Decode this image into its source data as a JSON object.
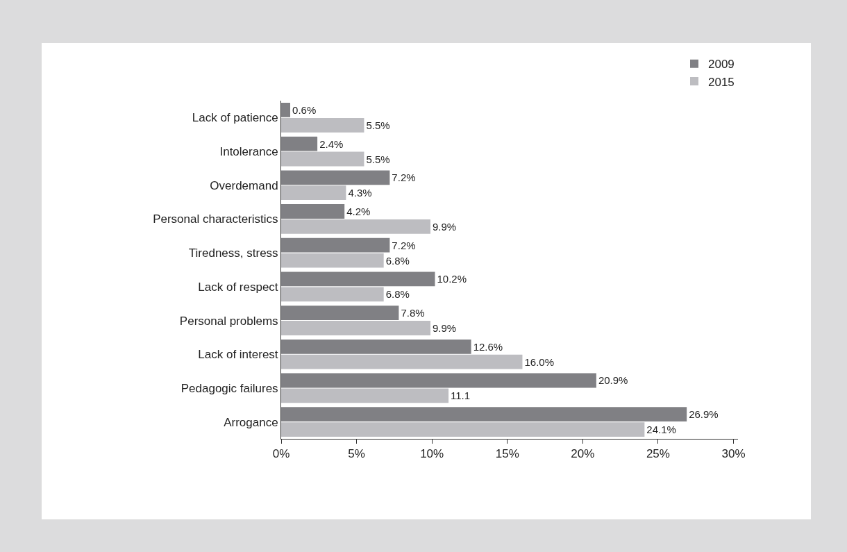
{
  "chart_data": {
    "type": "bar",
    "orientation": "horizontal",
    "categories": [
      "Lack of patience",
      "Intolerance",
      "Overdemand",
      "Personal characteristics",
      "Tiredness, stress",
      "Lack of respect",
      "Personal problems",
      "Lack of interest",
      "Pedagogic failures",
      "Arrogance"
    ],
    "series": [
      {
        "name": "2009",
        "color": "#808084",
        "values": [
          0.6,
          2.4,
          7.2,
          4.2,
          7.2,
          10.2,
          7.8,
          12.6,
          20.9,
          26.9
        ],
        "value_labels": [
          "0.6%",
          "2.4%",
          "7.2%",
          "4.2%",
          "7.2%",
          "10.2%",
          "7.8%",
          "12.6%",
          "20.9%",
          "26.9%"
        ]
      },
      {
        "name": "2015",
        "color": "#bdbdc1",
        "values": [
          5.5,
          5.5,
          4.3,
          9.9,
          6.8,
          6.8,
          9.9,
          16.0,
          11.1,
          24.1
        ],
        "value_labels": [
          "5.5%",
          "5.5%",
          "4.3%",
          "9.9%",
          "6.8%",
          "6.8%",
          "9.9%",
          "16.0%",
          "11.1",
          "24.1%"
        ]
      }
    ],
    "xlim": [
      0,
      30.3
    ],
    "xticks": [
      {
        "value": 0,
        "label": "0%"
      },
      {
        "value": 5,
        "label": "5%"
      },
      {
        "value": 10,
        "label": "10%"
      },
      {
        "value": 15,
        "label": "15%"
      },
      {
        "value": 20,
        "label": "20%"
      },
      {
        "value": 25,
        "label": "25%"
      },
      {
        "value": 30,
        "label": "30%"
      }
    ],
    "grid": false,
    "legend": "top right"
  }
}
